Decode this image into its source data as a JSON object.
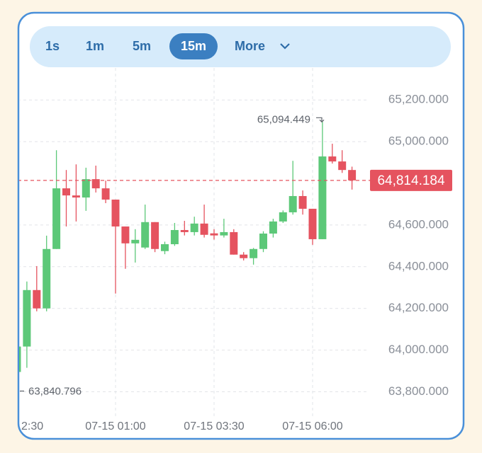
{
  "toolbar": {
    "intervals": [
      "1s",
      "1m",
      "5m",
      "15m"
    ],
    "active": "15m",
    "more": "More"
  },
  "chart_data": {
    "type": "candlestick",
    "categories": [
      "2:30",
      null,
      null,
      null,
      null,
      null,
      null,
      null,
      null,
      null,
      "07-15 01:00",
      null,
      null,
      null,
      null,
      null,
      null,
      null,
      null,
      null,
      "07-15 03:30",
      null,
      null,
      null,
      null,
      null,
      null,
      null,
      null,
      null,
      "07-15 06:00",
      null,
      null,
      null,
      null
    ],
    "open": [
      63895,
      64017,
      64288,
      64200,
      64485,
      64776,
      64742,
      64732,
      64820,
      64776,
      64722,
      64593,
      64512,
      64492,
      64614,
      64475,
      64508,
      64576,
      64566,
      64607,
      64560,
      64550,
      64566,
      64458,
      64441,
      64485,
      64559,
      64617,
      64661,
      64739,
      64678,
      64532,
      64929,
      64905,
      64864
    ],
    "high": [
      64020,
      64329,
      64403,
      64549,
      64959,
      64864,
      64891,
      64875,
      64885,
      64813,
      64722,
      64593,
      64580,
      64698,
      64614,
      64520,
      64610,
      64620,
      64640,
      64698,
      64580,
      64630,
      64580,
      64470,
      64490,
      64570,
      64630,
      64670,
      64908,
      64766,
      64678,
      65094.449,
      64990,
      64959,
      64880
    ],
    "low": [
      63840.796,
      63915,
      64186,
      64186,
      64485,
      64593,
      64617,
      64668,
      64756,
      64705,
      64271,
      64390,
      64420,
      64485,
      64470,
      64460,
      64500,
      64550,
      64550,
      64540,
      64530,
      64540,
      64458,
      64430,
      64410,
      64470,
      64540,
      64610,
      64650,
      64650,
      64505,
      64532,
      64895,
      64850,
      64770
    ],
    "close": [
      64017,
      64288,
      64200,
      64485,
      64776,
      64742,
      64732,
      64820,
      64776,
      64722,
      64593,
      64512,
      64529,
      64614,
      64485,
      64508,
      64576,
      64566,
      64607,
      64553,
      64550,
      64566,
      64458,
      64441,
      64485,
      64559,
      64617,
      64661,
      64739,
      64678,
      64532,
      64929,
      64905,
      64864,
      64814.184
    ],
    "up_color": "#5cc878",
    "down_color": "#e5535f",
    "ylim": [
      63710,
      65340
    ],
    "yticks": [
      {
        "value": 63800,
        "label": "63,800.000"
      },
      {
        "value": 64000,
        "label": "64,000.000"
      },
      {
        "value": 64200,
        "label": "64,200.000"
      },
      {
        "value": 64400,
        "label": "64,400.000"
      },
      {
        "value": 64600,
        "label": "64,600.000"
      },
      {
        "value": 65000,
        "label": "65,000.000"
      },
      {
        "value": 65200,
        "label": "65,200.000"
      }
    ],
    "grid": true,
    "last_price": {
      "value": 64814.184,
      "label": "64,814.184"
    },
    "high_marker": {
      "value": 65094.449,
      "label": "65,094.449"
    },
    "low_marker": {
      "value": 63840.796,
      "label": "63,840.796"
    }
  }
}
